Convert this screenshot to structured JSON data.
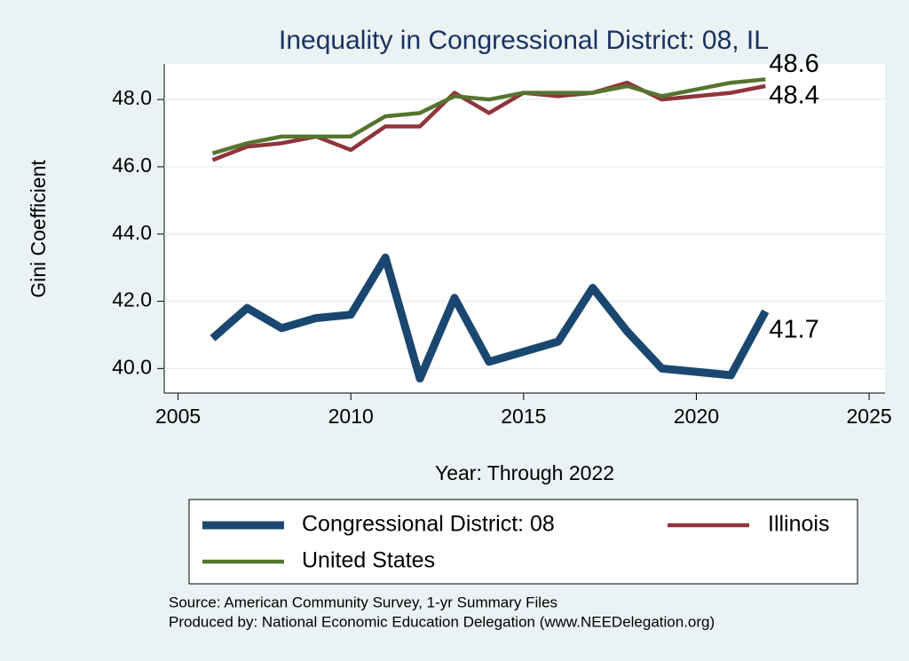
{
  "chart_data": {
    "type": "line",
    "title": "Inequality in Congressional District:  08, IL",
    "x_label": "Year: Through 2022",
    "y_label": "Gini Coefficient",
    "x": [
      2006,
      2007,
      2008,
      2009,
      2010,
      2011,
      2012,
      2013,
      2014,
      2015,
      2016,
      2017,
      2018,
      2019,
      2021,
      2022
    ],
    "series": [
      {
        "name": "Congressional District:  08",
        "color": "#1a476f",
        "width": 9,
        "values": [
          40.9,
          41.8,
          41.2,
          41.5,
          41.6,
          43.3,
          39.7,
          42.1,
          40.2,
          40.5,
          40.8,
          42.4,
          41.1,
          40.0,
          39.8,
          41.7
        ],
        "end_label": "41.7"
      },
      {
        "name": "Illinois",
        "color": "#90353b",
        "width": 4.5,
        "values": [
          46.2,
          46.6,
          46.7,
          46.9,
          46.5,
          47.2,
          47.2,
          48.2,
          47.6,
          48.2,
          48.1,
          48.2,
          48.5,
          48.0,
          48.2,
          48.4
        ],
        "end_label": "48.4"
      },
      {
        "name": "United States",
        "color": "#55752f",
        "width": 4.5,
        "values": [
          46.4,
          46.7,
          46.9,
          46.9,
          46.9,
          47.5,
          47.6,
          48.1,
          48.0,
          48.2,
          48.2,
          48.2,
          48.4,
          48.1,
          48.5,
          48.6
        ],
        "end_label": "48.6"
      }
    ],
    "xlim": [
      2004.6,
      2025.46
    ],
    "ylim": [
      39.27,
      49.06
    ],
    "xticks": [
      2005,
      2010,
      2015,
      2020,
      2025
    ],
    "yticks": [
      {
        "value": 40,
        "label": "40.0"
      },
      {
        "value": 42,
        "label": "42.0"
      },
      {
        "value": 44,
        "label": "44.0"
      },
      {
        "value": 46,
        "label": "46.0"
      },
      {
        "value": 48,
        "label": "48.0"
      }
    ],
    "grid": true,
    "notes": [
      "Source: American Community Survey, 1-yr Summary Files",
      "Produced by: National Economic Education Delegation (www.NEEDelegation.org)"
    ]
  }
}
